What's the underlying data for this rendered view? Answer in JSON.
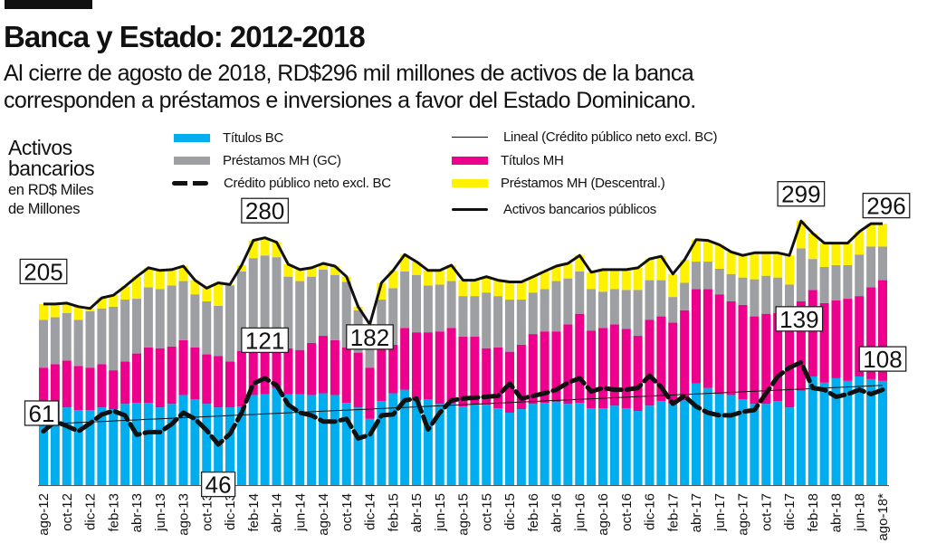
{
  "title": "Banca y Estado: 2012-2018",
  "subtitle_lines": [
    "Al cierre de agosto de 2018, RD$296 mil millones de activos de la banca",
    "corresponden a préstamos e inversiones a favor del Estado Dominicano."
  ],
  "unit_label": {
    "main": [
      "Activos",
      "bancarios"
    ],
    "sub": [
      "en RD$ Miles",
      "de Millones"
    ]
  },
  "colors": {
    "titulos_bc": "#00aeef",
    "titulos_mh": "#ec008c",
    "prestamos_gc": "#9d9fa2",
    "prestamos_descentral": "#fff200",
    "lines": "#111111"
  },
  "legend": {
    "titulos_bc": "Títulos BC",
    "prestamos_gc": "Préstamos MH (GC)",
    "credito": "Crédito público neto excl. BC",
    "lineal": "Lineal (Crédito público neto excl. BC)",
    "titulos_mh": "Títulos MH",
    "prestamos_descentral": "Préstamos MH (Descentral.)",
    "activos": "Activos bancarios públicos"
  },
  "chart_data": {
    "type": "bar",
    "stacked": true,
    "frequency": "monthly",
    "ylim": [
      0,
      310
    ],
    "grid": false,
    "legend_placement": "top",
    "tick_labels": [
      "ago-12",
      "oct-12",
      "dic-12",
      "feb-13",
      "abr-13",
      "jun-13",
      "ago-13",
      "oct-13",
      "dic-13",
      "feb-14",
      "abr-14",
      "jun-14",
      "ago-14",
      "oct-14",
      "dic-14",
      "feb-15",
      "abr-15",
      "jun-15",
      "ago-15",
      "oct-15",
      "dic-15",
      "feb-16",
      "abr-16",
      "jun-16",
      "ago-16",
      "oct-16",
      "dic-16",
      "feb-17",
      "abr-17",
      "jun-17",
      "ago-17",
      "oct-17",
      "dic-17",
      "feb-18",
      "abr-18",
      "jun-18",
      "ago-18*"
    ],
    "series": [
      {
        "name": "Títulos BC",
        "key": "titulos_bc",
        "values": [
          70,
          70,
          88,
          85,
          85,
          88,
          86,
          92,
          93,
          93,
          88,
          92,
          102,
          97,
          92,
          88,
          88,
          89,
          102,
          103,
          110,
          103,
          103,
          102,
          104,
          102,
          93,
          88,
          75,
          95,
          104,
          108,
          96,
          97,
          92,
          92,
          89,
          91,
          91,
          87,
          82,
          86,
          92,
          93,
          94,
          92,
          93,
          87,
          87,
          90,
          87,
          84,
          90,
          95,
          92,
          96,
          115,
          110,
          103,
          102,
          97,
          92,
          92,
          95,
          88,
          107,
          123,
          116,
          121,
          118,
          123,
          120,
          118
        ]
      },
      {
        "name": "Títulos MH",
        "key": "titulos_mh",
        "values": [
          63,
          67,
          53,
          50,
          48,
          49,
          44,
          48,
          56,
          63,
          67,
          65,
          62,
          59,
          56,
          58,
          52,
          63,
          58,
          51,
          51,
          52,
          50,
          59,
          65,
          62,
          63,
          62,
          58,
          64,
          55,
          70,
          77,
          76,
          82,
          86,
          79,
          77,
          64,
          69,
          69,
          73,
          79,
          81,
          80,
          90,
          101,
          88,
          91,
          92,
          90,
          85,
          97,
          96,
          92,
          102,
          107,
          112,
          113,
          106,
          107,
          99,
          102,
          100,
          103,
          101,
          98,
          90,
          88,
          93,
          91,
          104,
          114
        ]
      },
      {
        "name": "Préstamos MH (GC)",
        "key": "prestamos_gc",
        "values": [
          54,
          53,
          54,
          52,
          64,
          63,
          72,
          70,
          62,
          68,
          67,
          69,
          67,
          60,
          60,
          57,
          86,
          90,
          97,
          106,
          97,
          81,
          78,
          75,
          75,
          74,
          74,
          48,
          47,
          51,
          64,
          64,
          65,
          53,
          53,
          53,
          46,
          46,
          63,
          58,
          59,
          51,
          47,
          48,
          57,
          52,
          48,
          47,
          41,
          40,
          44,
          52,
          45,
          41,
          29,
          31,
          31,
          31,
          29,
          31,
          31,
          42,
          43,
          40,
          36,
          60,
          35,
          41,
          40,
          38,
          47,
          46,
          38
        ]
      },
      {
        "name": "Préstamos MH (Descentral.)",
        "key": "prestamos_descentral",
        "values": [
          18,
          15,
          11,
          15,
          3,
          12,
          13,
          15,
          25,
          22,
          21,
          18,
          17,
          16,
          15,
          26,
          1,
          7,
          20,
          20,
          17,
          14,
          13,
          10,
          7,
          10,
          6,
          4,
          2,
          19,
          20,
          19,
          15,
          17,
          16,
          18,
          18,
          18,
          18,
          18,
          20,
          20,
          18,
          20,
          17,
          17,
          18,
          19,
          25,
          22,
          23,
          25,
          24,
          27,
          26,
          26,
          25,
          24,
          27,
          25,
          25,
          30,
          26,
          28,
          33,
          31,
          29,
          27,
          25,
          25,
          26,
          26,
          26
        ]
      },
      {
        "name": "Crédito público neto excl. BC",
        "key": "credito",
        "type": "line",
        "style": "dashed",
        "values": [
          61,
          72,
          67,
          61,
          70,
          80,
          84,
          79,
          57,
          60,
          60,
          69,
          82,
          75,
          62,
          46,
          58,
          82,
          115,
          121,
          113,
          91,
          82,
          79,
          72,
          72,
          75,
          53,
          57,
          79,
          80,
          96,
          98,
          63,
          82,
          96,
          98,
          99,
          100,
          101,
          115,
          98,
          101,
          104,
          108,
          116,
          121,
          106,
          110,
          108,
          108,
          110,
          124,
          111,
          92,
          101,
          89,
          82,
          79,
          79,
          83,
          85,
          104,
          123,
          133,
          139,
          110,
          108,
          100,
          103,
          108,
          103,
          108
        ]
      },
      {
        "name": "Lineal (Crédito público neto excl. BC)",
        "key": "lineal",
        "type": "line",
        "style": "thin",
        "start": 69,
        "end": 113
      },
      {
        "name": "Activos bancarios públicos",
        "key": "activos",
        "type": "line",
        "style": "solid",
        "equals": "sum of stacked bars"
      }
    ],
    "annotations": [
      {
        "text": "205",
        "month": "ago-12",
        "series": "activos"
      },
      {
        "text": "61",
        "month": "ago-12",
        "series": "credito"
      },
      {
        "text": "46",
        "month": "nov-13",
        "series": "credito"
      },
      {
        "text": "280",
        "month": "mar-14",
        "series": "activos"
      },
      {
        "text": "121",
        "month": "mar-14",
        "series": "credito"
      },
      {
        "text": "182",
        "month": "dic-14",
        "series": "activos"
      },
      {
        "text": "299",
        "month": "ene-18",
        "series": "activos"
      },
      {
        "text": "139",
        "month": "ene-18",
        "series": "credito"
      },
      {
        "text": "296",
        "month": "ago-18",
        "series": "activos"
      },
      {
        "text": "108",
        "month": "ago-18",
        "series": "credito"
      }
    ]
  }
}
